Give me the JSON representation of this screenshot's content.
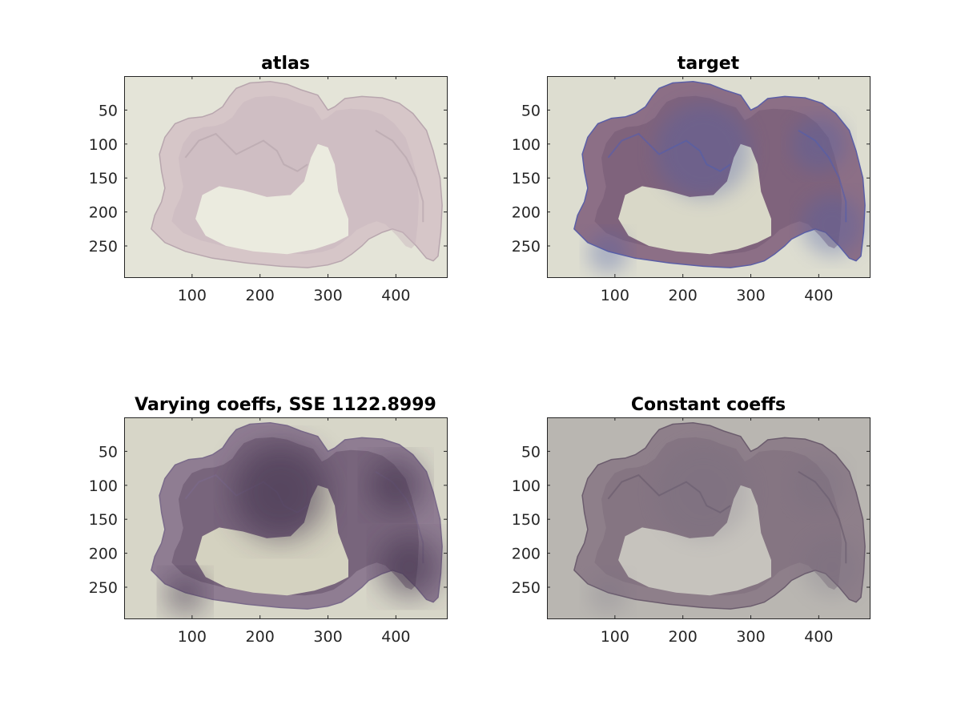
{
  "figure": {
    "panels": [
      {
        "id": "atlas",
        "title": "atlas",
        "x_ticks": [
          "100",
          "200",
          "300",
          "400"
        ],
        "y_ticks": [
          "50",
          "100",
          "150",
          "200",
          "250"
        ],
        "colors": {
          "background": "#e4e4d8",
          "tissue": "#d6c6c8",
          "tissue_dark": "#c8b4bc",
          "edge": "#b8a6ae",
          "ventricle": "#ebebdf",
          "blob": "#b7a6b6",
          "blob_opacity": 0.0
        }
      },
      {
        "id": "target",
        "title": "target",
        "x_ticks": [
          "100",
          "200",
          "300",
          "400"
        ],
        "y_ticks": [
          "50",
          "100",
          "150",
          "200",
          "250"
        ],
        "colors": {
          "background": "#ddddd0",
          "tissue": "#8c6f86",
          "tissue_dark": "#6f5570",
          "edge": "#5b5ea6",
          "ventricle": "#d9d8c8",
          "blob": "#4f5fa8",
          "blob_opacity": 0.35
        }
      },
      {
        "id": "varying",
        "title": "Varying coeffs, SSE 1122.8999",
        "x_ticks": [
          "100",
          "200",
          "300",
          "400"
        ],
        "y_ticks": [
          "50",
          "100",
          "150",
          "200",
          "250"
        ],
        "colors": {
          "background": "#d7d6c8",
          "tissue": "#8f7d92",
          "tissue_dark": "#5e4a62",
          "edge": "#7a6a8a",
          "ventricle": "#d4d2c0",
          "blob": "#3d2f48",
          "blob_opacity": 0.55
        }
      },
      {
        "id": "constant",
        "title": "Constant coeffs",
        "x_ticks": [
          "100",
          "200",
          "300",
          "400"
        ],
        "y_ticks": [
          "50",
          "100",
          "150",
          "200",
          "250"
        ],
        "colors": {
          "background": "#b9b6b1",
          "tissue": "#8e7f8a",
          "tissue_dark": "#7a6a78",
          "edge": "#6b5c6d",
          "ventricle": "#c6c3bd",
          "blob": "#6f6b7f",
          "blob_opacity": 0.2
        }
      }
    ]
  }
}
